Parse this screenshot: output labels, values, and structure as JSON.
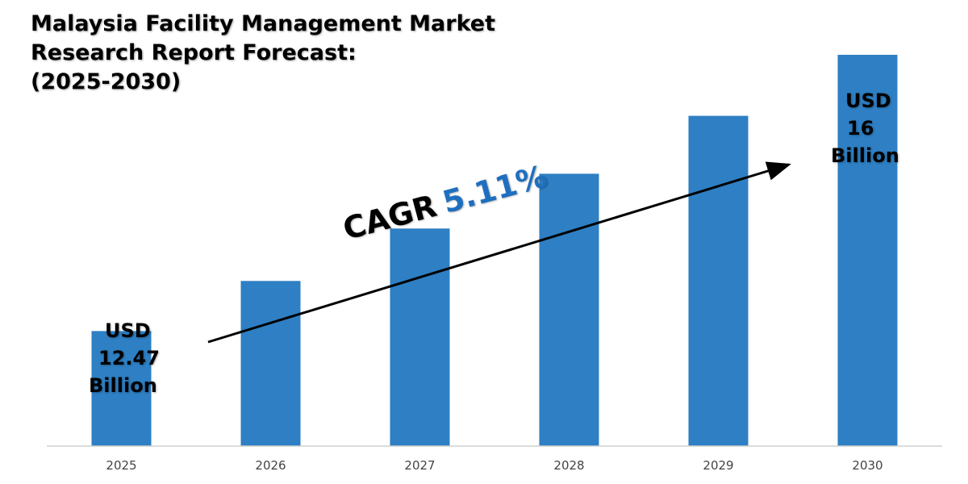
{
  "title": {
    "line1": "Malaysia Facility Management Market",
    "line2": "Research Report Forecast:",
    "line3": "(2025-2030)"
  },
  "annotations": {
    "start": {
      "l1": "USD",
      "l2": "12.47",
      "l3": "Billion"
    },
    "end": {
      "l1": "USD",
      "l2": "16",
      "l3": "Billion"
    },
    "cagr_label": "CAGR",
    "cagr_value": "5.11%"
  },
  "colors": {
    "bar": "#2e7fc3",
    "cagr_value": "#1f6fbf",
    "axis": "#d0d0d0"
  },
  "chart_data": {
    "type": "bar",
    "title": "Malaysia Facility Management Market Research Report Forecast: (2025-2030)",
    "categories": [
      "2025",
      "2026",
      "2027",
      "2028",
      "2029",
      "2030"
    ],
    "values": [
      12.47,
      13.11,
      13.78,
      14.48,
      15.22,
      16.0
    ],
    "unit": "USD Billion",
    "xlabel": "",
    "ylabel": "",
    "ylim": [
      11,
      16.7
    ],
    "grid": false,
    "legend": "none"
  }
}
